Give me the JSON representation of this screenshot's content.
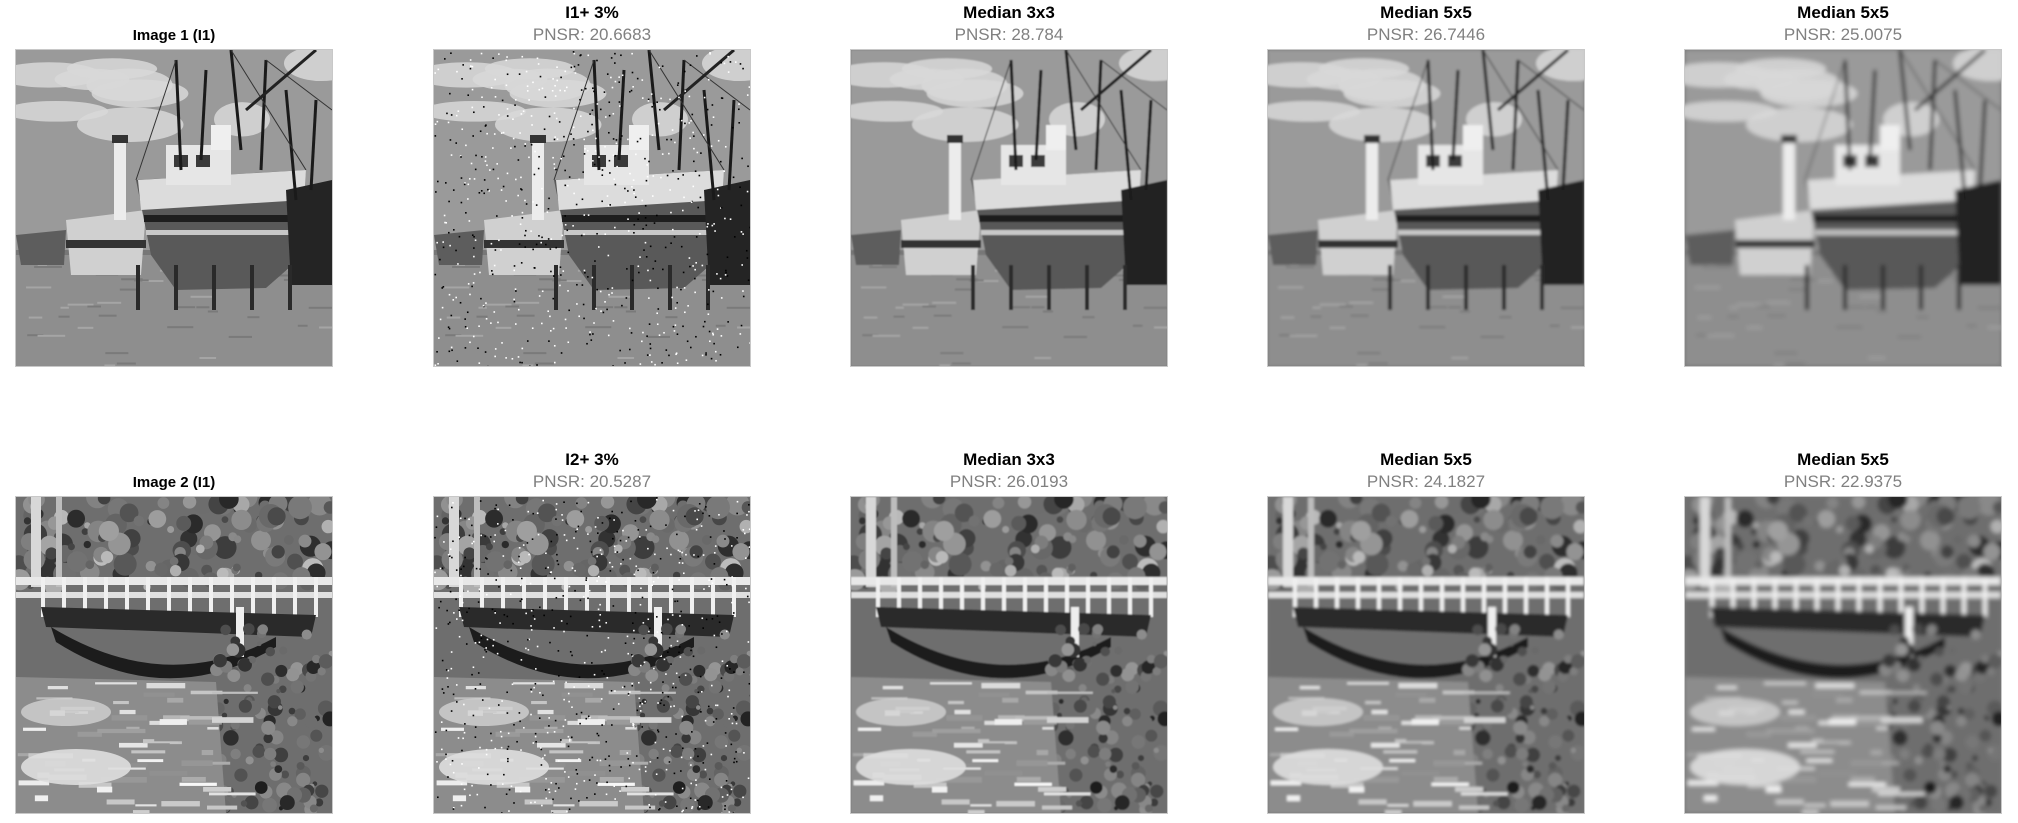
{
  "figure": {
    "rows": [
      {
        "name": "boat",
        "panels": [
          {
            "title": "Image 1 (I1)",
            "subtitle": "",
            "variant": "orig"
          },
          {
            "title": "I1+ 3%",
            "subtitle": "PNSR: 20.6683",
            "variant": "noisy"
          },
          {
            "title": "Median 3x3",
            "subtitle": "PNSR: 28.784",
            "variant": "smooth1"
          },
          {
            "title": "Median 5x5",
            "subtitle": "PNSR: 26.7446",
            "variant": "smooth2"
          },
          {
            "title": "Median 5x5",
            "subtitle": "PNSR: 25.0075",
            "variant": "smooth3"
          }
        ]
      },
      {
        "name": "bridge",
        "panels": [
          {
            "title": "Image 2 (I1)",
            "subtitle": "",
            "variant": "orig"
          },
          {
            "title": "I2+ 3%",
            "subtitle": "PNSR: 20.5287",
            "variant": "noisy"
          },
          {
            "title": "Median 3x3",
            "subtitle": "PNSR: 26.0193",
            "variant": "smooth1"
          },
          {
            "title": "Median 5x5",
            "subtitle": "PNSR: 24.1827",
            "variant": "smooth2"
          },
          {
            "title": "Median 5x5",
            "subtitle": "PNSR: 22.9375",
            "variant": "smooth3"
          }
        ]
      }
    ]
  }
}
